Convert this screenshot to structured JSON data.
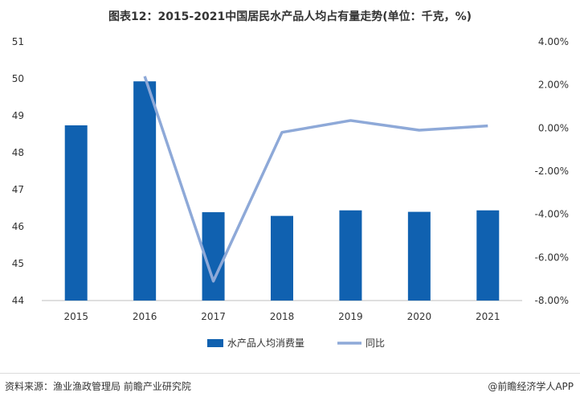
{
  "chart_data": {
    "type": "bar+line",
    "title": "图表12：2015-2021中国居民水产品人均占有量走势(单位：千克，%)",
    "categories": [
      "2015",
      "2016",
      "2017",
      "2018",
      "2019",
      "2020",
      "2021"
    ],
    "series": [
      {
        "name": "水产品人均消费量",
        "type": "bar",
        "axis": "left",
        "color": "#1061b0",
        "values": [
          48.74,
          49.93,
          46.39,
          46.29,
          46.44,
          46.4,
          46.44
        ]
      },
      {
        "name": "同比",
        "type": "line",
        "axis": "right",
        "color": "#8ea9d8",
        "values": [
          null,
          2.4,
          -7.1,
          -0.2,
          0.35,
          -0.1,
          0.1
        ]
      }
    ],
    "y_left": {
      "min": 44,
      "max": 51,
      "ticks": [
        "44",
        "45",
        "46",
        "47",
        "48",
        "49",
        "50",
        "51"
      ]
    },
    "y_right": {
      "min": -8,
      "max": 4,
      "ticks": [
        "-8.00%",
        "-6.00%",
        "-4.00%",
        "-2.00%",
        "0.00%",
        "2.00%",
        "4.00%"
      ]
    },
    "legend": "bottom"
  },
  "footer": {
    "source": "资料来源：渔业渔政管理局 前瞻产业研究院",
    "brand": "@前瞻经济学人APP"
  }
}
